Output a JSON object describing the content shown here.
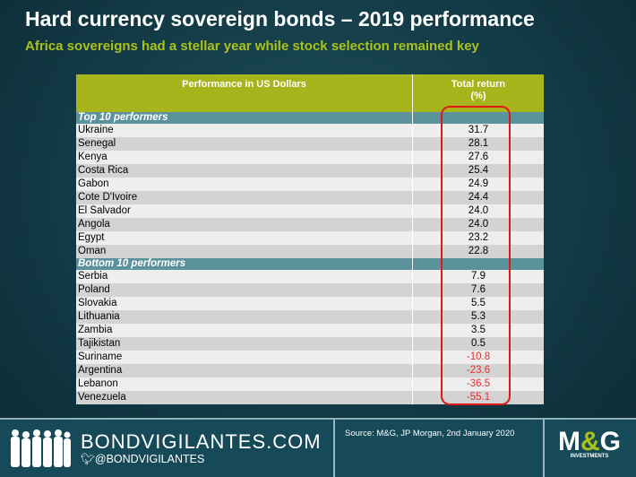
{
  "title": "Hard currency sovereign bonds – 2019 performance",
  "subtitle": "Africa sovereigns had a stellar year while stock selection remained key",
  "table": {
    "col1": "Performance in US Dollars",
    "col2a": "Total return",
    "col2b": "(%)",
    "top_label": "Top 10 performers",
    "top": [
      [
        "Ukraine",
        "31.7"
      ],
      [
        "Senegal",
        "28.1"
      ],
      [
        "Kenya",
        "27.6"
      ],
      [
        "Costa Rica",
        "25.4"
      ],
      [
        "Gabon",
        "24.9"
      ],
      [
        "Cote D'Ivoire",
        "24.4"
      ],
      [
        "El Salvador",
        "24.0"
      ],
      [
        "Angola",
        "24.0"
      ],
      [
        "Egypt",
        "23.2"
      ],
      [
        "Oman",
        "22.8"
      ]
    ],
    "bottom_label": "Bottom 10 performers",
    "bottom": [
      [
        "Serbia",
        "7.9"
      ],
      [
        "Poland",
        "7.6"
      ],
      [
        "Slovakia",
        "5.5"
      ],
      [
        "Lithuania",
        "5.3"
      ],
      [
        "Zambia",
        "3.5"
      ],
      [
        "Tajikistan",
        "0.5"
      ],
      [
        "Suriname",
        "-10.8"
      ],
      [
        "Argentina",
        "-23.6"
      ],
      [
        "Lebanon",
        "-36.5"
      ],
      [
        "Venezuela",
        "-55.1"
      ]
    ]
  },
  "footer": {
    "site": "BONDVIGILANTES.COM",
    "twitter": "@BONDVIGILANTES",
    "source": "Source: M&G, JP Morgan, 2nd January 2020",
    "logo": "M&G INVESTMENTS"
  },
  "colors": {
    "accent": "#a9c21c",
    "negative": "#e03030",
    "highlight": "#e01818"
  }
}
